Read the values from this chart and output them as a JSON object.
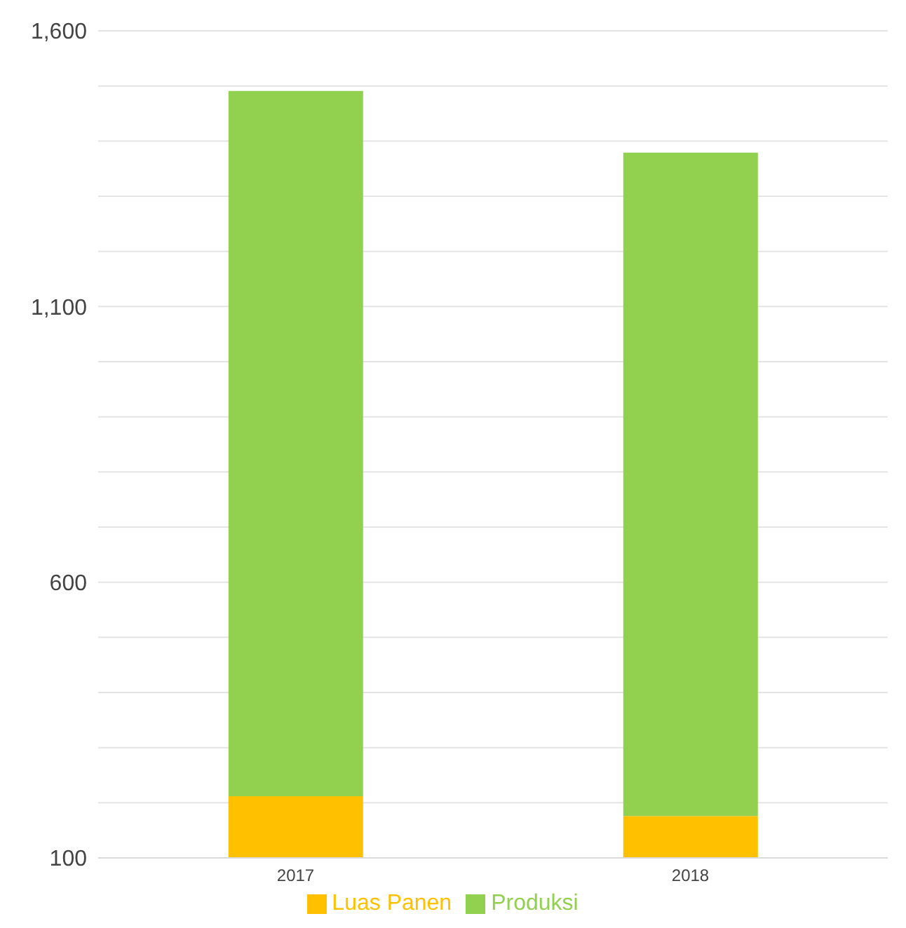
{
  "chart_data": {
    "type": "bar",
    "stacked": true,
    "categories": [
      "2017",
      "2018"
    ],
    "series": [
      {
        "name": "Luas Panen",
        "color": "#ffc000",
        "values": [
          212,
          176
        ]
      },
      {
        "name": "Produksi",
        "color": "#92d050",
        "values": [
          1279,
          1203
        ]
      }
    ],
    "ylim": [
      100,
      1600
    ],
    "yticks": [
      100,
      {
        "value": 200,
        "label": null
      },
      {
        "value": 300,
        "label": null
      },
      {
        "value": 400,
        "label": null
      },
      {
        "value": 500,
        "label": null
      },
      600,
      {
        "value": 700,
        "label": null
      },
      {
        "value": 800,
        "label": null
      },
      {
        "value": 900,
        "label": null
      },
      {
        "value": 1000,
        "label": null
      },
      {
        "value": 1100,
        "label": "1,100"
      },
      {
        "value": 1200,
        "label": null
      },
      {
        "value": 1300,
        "label": null
      },
      {
        "value": 1400,
        "label": null
      },
      {
        "value": 1500,
        "label": null
      },
      {
        "value": 1600,
        "label": "1,600"
      }
    ],
    "grid": "y",
    "legend": "bottom"
  }
}
